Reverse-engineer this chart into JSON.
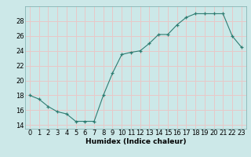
{
  "x": [
    0,
    1,
    2,
    3,
    4,
    5,
    6,
    7,
    8,
    9,
    10,
    11,
    12,
    13,
    14,
    15,
    16,
    17,
    18,
    19,
    20,
    21,
    22,
    23
  ],
  "y": [
    18,
    17.5,
    16.5,
    15.8,
    15.5,
    14.5,
    14.5,
    14.5,
    18,
    21,
    23.5,
    23.8,
    24,
    25,
    26.2,
    26.2,
    27.5,
    28.5,
    29,
    29,
    29,
    29,
    26,
    24.5
  ],
  "line_color": "#2e7d72",
  "marker_color": "#2e7d72",
  "bg_color": "#cce8e8",
  "grid_color": "#e8c8c8",
  "xlabel": "Humidex (Indice chaleur)",
  "ylim": [
    13.5,
    30
  ],
  "xlim": [
    -0.5,
    23.5
  ],
  "yticks": [
    14,
    16,
    18,
    20,
    22,
    24,
    26,
    28
  ],
  "xtick_labels": [
    "0",
    "1",
    "2",
    "3",
    "4",
    "5",
    "6",
    "7",
    "8",
    "9",
    "10",
    "11",
    "12",
    "13",
    "14",
    "15",
    "16",
    "17",
    "18",
    "19",
    "20",
    "21",
    "22",
    "23"
  ],
  "label_fontsize": 6.5,
  "tick_fontsize": 6
}
